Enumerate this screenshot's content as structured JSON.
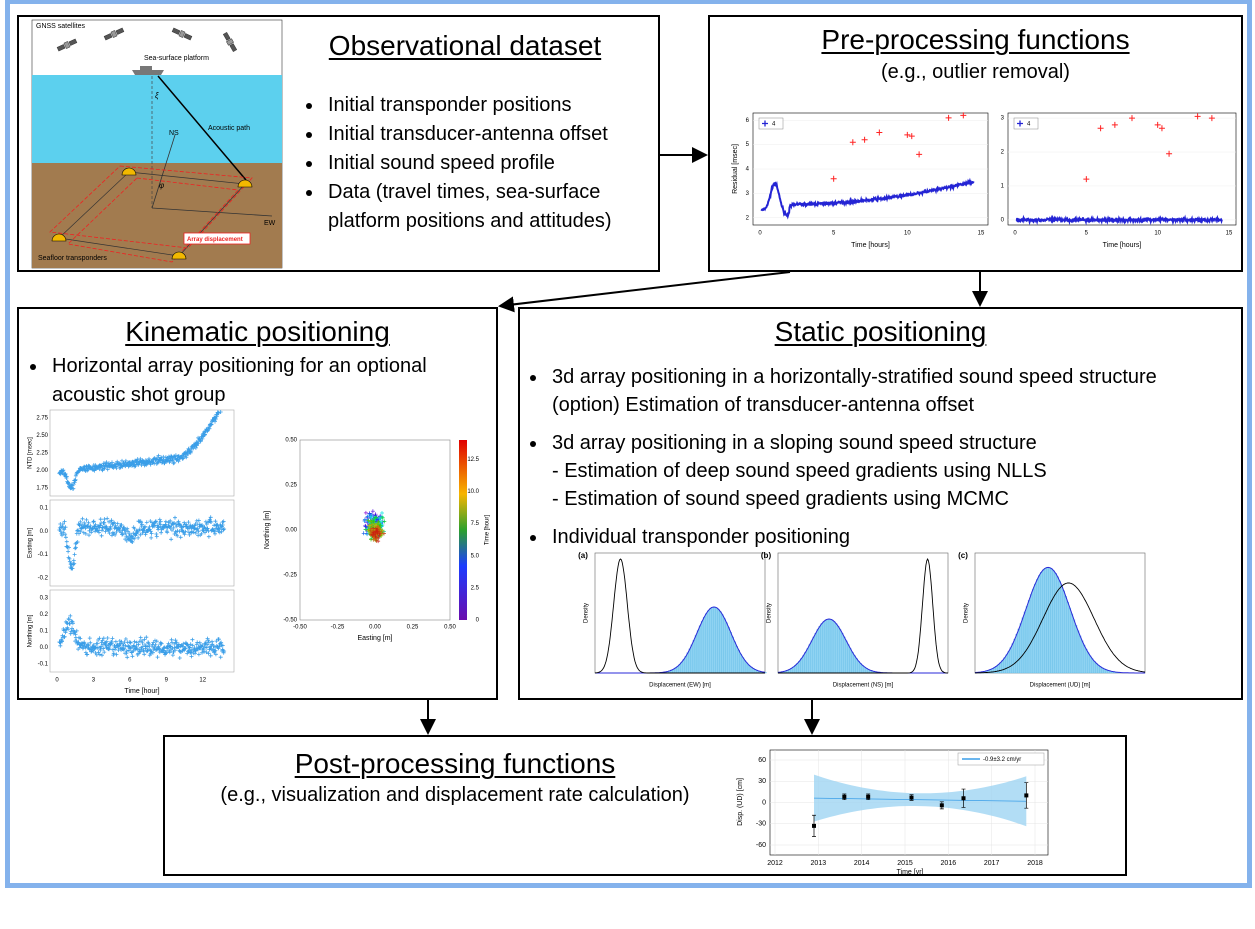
{
  "observational": {
    "title": "Observational dataset",
    "bullets": [
      "Initial transponder positions",
      "Initial transducer-antenna offset",
      "Initial sound speed profile",
      "Data (travel times, sea-surface platform positions and attitudes)"
    ],
    "illustration": {
      "gnss": "GNSS satellites",
      "platform": "Sea-surface platform",
      "acoustic": "Acoustic path",
      "ns": "NS",
      "ew": "EW",
      "xi": "ξ",
      "phi": "φ",
      "displacement": "Array displacement",
      "transponders": "Seafloor transponders"
    }
  },
  "preprocessing": {
    "title": "Pre-processing functions",
    "subtitle": "(e.g., outlier removal)",
    "plots": [
      {
        "ylabel": "Residual [msec]",
        "xlabel": "Time [hours]",
        "legend": "4",
        "yticks": [
          "2",
          "3",
          "4",
          "5",
          "6"
        ],
        "xticks": [
          "0",
          "5",
          "10",
          "15"
        ]
      },
      {
        "xlabel": "Time [hours]",
        "legend": "4",
        "yticks": [
          "0",
          "1",
          "2",
          "3"
        ],
        "xticks": [
          "0",
          "5",
          "10",
          "15"
        ]
      }
    ]
  },
  "kinematic": {
    "title": "Kinematic positioning",
    "bullets": [
      "Horizontal array positioning for an optional acoustic shot group"
    ],
    "timeseries": {
      "panels": [
        {
          "ylabel": "NTD [msec]",
          "yticks": [
            "1.75",
            "2.00",
            "2.25",
            "2.50",
            "2.75"
          ]
        },
        {
          "ylabel": "Easting [m]",
          "yticks": [
            "-0.2",
            "-0.1",
            "0.0",
            "0.1"
          ]
        },
        {
          "ylabel": "Northing [m]",
          "yticks": [
            "-0.1",
            "0.0",
            "0.1",
            "0.2",
            "0.3"
          ]
        }
      ],
      "xticks": [
        "0",
        "3",
        "6",
        "9",
        "12"
      ],
      "xlabel": "Time [hour]"
    },
    "scatter": {
      "xlabel": "Easting [m]",
      "ylabel": "Northing [m]",
      "ticks": [
        "-0.50",
        "-0.25",
        "0.00",
        "0.25",
        "0.50"
      ],
      "colorbar_label": "Time [hour]",
      "colorbar_ticks": [
        "0",
        "2.5",
        "5.0",
        "7.5",
        "10.0",
        "12.5"
      ]
    }
  },
  "static": {
    "title": "Static positioning",
    "bullets": [
      [
        "3d array positioning in a horizontally-stratified sound speed structure",
        "(option) Estimation of transducer-antenna offset"
      ],
      [
        "3d array positioning in a sloping sound speed structure",
        "- Estimation of deep sound speed gradients using NLLS",
        "- Estimation of sound speed gradients using MCMC"
      ],
      [
        "Individual transponder positioning"
      ]
    ],
    "panels": [
      {
        "tag": "(a)",
        "ylabel": "Density",
        "xlabel": "Displacement (EW) [m]"
      },
      {
        "tag": "(b)",
        "ylabel": "Density",
        "xlabel": "Displacement (NS) [m]"
      },
      {
        "tag": "(c)",
        "ylabel": "Density",
        "xlabel": "Displacement (UD) [m]"
      }
    ]
  },
  "postprocessing": {
    "title": "Post-processing functions",
    "subtitle": "(e.g., visualization and displacement rate calculation)",
    "plot": {
      "legend": "-0.9±3.2 cm/yr",
      "ylabel": "Disp. (UD) [cm]",
      "xlabel": "Time [yr]",
      "yticks": [
        "60",
        "30",
        "0",
        "-30",
        "-60"
      ],
      "xticks": [
        "2012",
        "2013",
        "2014",
        "2015",
        "2016",
        "2017",
        "2018"
      ]
    }
  }
}
